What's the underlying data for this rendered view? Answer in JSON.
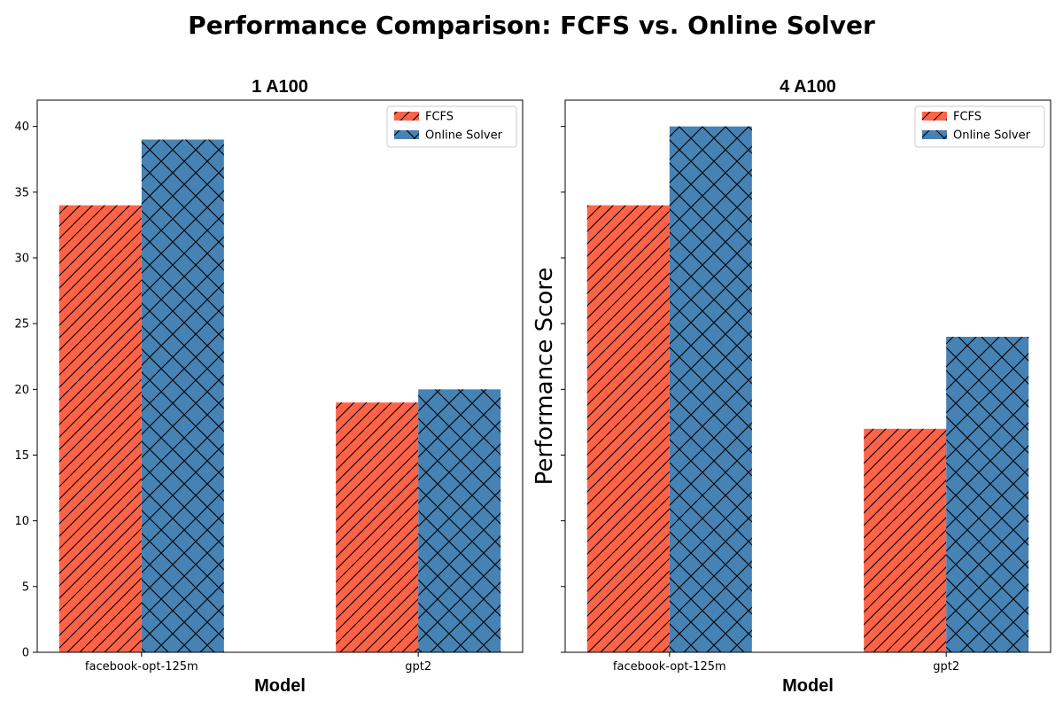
{
  "figure": {
    "title": "Performance Comparison: FCFS vs. Online Solver"
  },
  "colors": {
    "FCFS": "#ff6347",
    "Online Solver": "#4682b4"
  },
  "hatches": {
    "FCFS": "diagonal",
    "Online Solver": "crosshatch"
  },
  "chart_data": [
    {
      "type": "bar",
      "title": "1 A100",
      "xlabel": "Model",
      "ylabel": "",
      "categories": [
        "facebook-opt-125m",
        "gpt2"
      ],
      "series": [
        {
          "name": "FCFS",
          "values": [
            34,
            19
          ]
        },
        {
          "name": "Online Solver",
          "values": [
            39,
            20
          ]
        }
      ],
      "ylim": [
        0,
        42
      ],
      "yticks": [
        0,
        5,
        10,
        15,
        20,
        25,
        30,
        35,
        40
      ],
      "show_ytick_labels": true,
      "legend": "top-right",
      "grid": false
    },
    {
      "type": "bar",
      "title": "4 A100",
      "xlabel": "Model",
      "ylabel": "Performance Score",
      "categories": [
        "facebook-opt-125m",
        "gpt2"
      ],
      "series": [
        {
          "name": "FCFS",
          "values": [
            34,
            17
          ]
        },
        {
          "name": "Online Solver",
          "values": [
            40,
            24
          ]
        }
      ],
      "ylim": [
        0,
        42
      ],
      "yticks": [
        0,
        5,
        10,
        15,
        20,
        25,
        30,
        35,
        40
      ],
      "show_ytick_labels": false,
      "legend": "top-right",
      "grid": false
    }
  ]
}
